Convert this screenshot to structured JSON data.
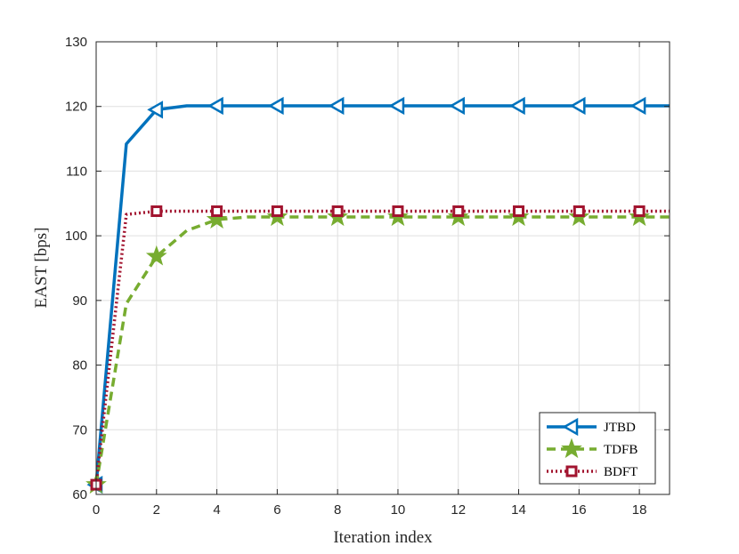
{
  "chart_data": {
    "type": "line",
    "title": "",
    "xlabel": "Iteration index",
    "ylabel": "EAST [bps]",
    "xlim": [
      0,
      19
    ],
    "ylim": [
      60,
      130
    ],
    "xticks": [
      0,
      2,
      4,
      6,
      8,
      10,
      12,
      14,
      16,
      18
    ],
    "yticks": [
      60,
      70,
      80,
      90,
      100,
      110,
      120,
      130
    ],
    "grid": true,
    "legend_position": "bottom-right",
    "x": [
      0,
      1,
      2,
      3,
      4,
      5,
      6,
      7,
      8,
      9,
      10,
      11,
      12,
      13,
      14,
      15,
      16,
      17,
      18,
      19
    ],
    "series": [
      {
        "name": "JTBD",
        "color": "#0072BD",
        "style": "solid",
        "marker": "left-triangle",
        "values": [
          61.5,
          114.2,
          119.5,
          120.1,
          120.1,
          120.1,
          120.1,
          120.1,
          120.1,
          120.1,
          120.1,
          120.1,
          120.1,
          120.1,
          120.1,
          120.1,
          120.1,
          120.1,
          120.1,
          120.1
        ]
      },
      {
        "name": "TDFB",
        "color": "#77AC30",
        "style": "dashed",
        "marker": "star",
        "values": [
          61.5,
          89.5,
          96.8,
          100.8,
          102.5,
          102.9,
          102.9,
          102.9,
          102.9,
          102.9,
          102.9,
          102.9,
          102.9,
          102.9,
          102.9,
          102.9,
          102.9,
          102.9,
          102.9,
          102.9
        ]
      },
      {
        "name": "BDFT",
        "color": "#A2142F",
        "style": "dotted",
        "marker": "square",
        "values": [
          61.5,
          103.3,
          103.8,
          103.8,
          103.8,
          103.8,
          103.8,
          103.8,
          103.8,
          103.8,
          103.8,
          103.8,
          103.8,
          103.8,
          103.8,
          103.8,
          103.8,
          103.8,
          103.8,
          103.8
        ]
      }
    ]
  }
}
